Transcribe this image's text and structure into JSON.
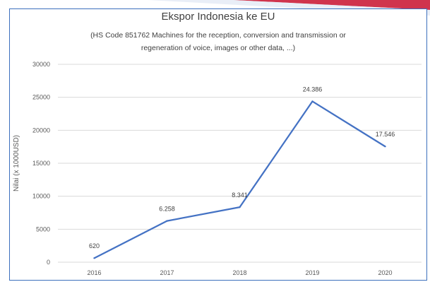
{
  "chart_data": {
    "type": "line",
    "title": "Ekspor Indonesia ke EU",
    "subtitle_lines": [
      "(HS Code 851762 Machines for the reception, conversion and transmission or",
      "regeneration of voice, images or other data, ...)"
    ],
    "ylabel": "Nilai (x 1000USD)",
    "xlabel": "",
    "categories": [
      "2016",
      "2017",
      "2018",
      "2019",
      "2020"
    ],
    "series": [
      {
        "values": [
          620,
          6258,
          8341,
          24386,
          17546
        ],
        "labels": [
          "620",
          "6.258",
          "8.341",
          "24.386",
          "17.546"
        ],
        "color": "#4472c4"
      }
    ],
    "ylim": [
      0,
      30000
    ],
    "yticks": [
      0,
      5000,
      10000,
      15000,
      20000,
      25000,
      30000
    ],
    "grid": true,
    "legend": "none"
  },
  "colors": {
    "frame": "#3c6fbd",
    "line": "#4472c4",
    "grid": "#d9d9d9"
  }
}
